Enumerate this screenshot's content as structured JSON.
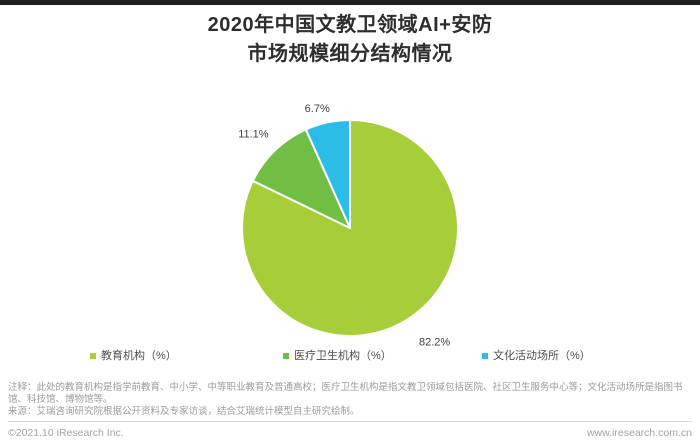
{
  "header": {
    "title_line1": "2020年中国文教卫领域AI+安防",
    "title_line2": "市场规模细分结构情况"
  },
  "chart_data": {
    "type": "pie",
    "title": "2020年中国文教卫领域AI+安防市场规模细分结构情况",
    "categories": [
      "教育机构",
      "医疗卫生机构",
      "文化活动场所"
    ],
    "values": [
      82.2,
      11.1,
      6.7
    ],
    "data_labels": [
      "82.2%",
      "11.1%",
      "6.7%"
    ],
    "unit": "%",
    "colors": [
      "#a6ce39",
      "#70bf44",
      "#2bbce8"
    ],
    "label_color": "#404040",
    "start_angle": "12-oclock",
    "direction": "clockwise",
    "legend_position": "bottom",
    "legend_labels": [
      "教育机构（%）",
      "医疗卫生机构（%）",
      "文化活动场所（%）"
    ]
  },
  "notes": {
    "annotation": "注释：此处的教育机构是指学前教育、中小学、中等职业教育及普通高校；医疗卫生机构是指文教卫领域包括医院、社区卫生服务中心等；文化活动场所是指图书馆、科技馆、博物馆等。",
    "source": "来源：艾瑞咨询研究院根据公开资料及专家访谈，结合艾瑞统计模型自主研究绘制。"
  },
  "footer": {
    "copyright": "©2021.10 iResearch Inc.",
    "website": "www.iresearch.com.cn"
  }
}
